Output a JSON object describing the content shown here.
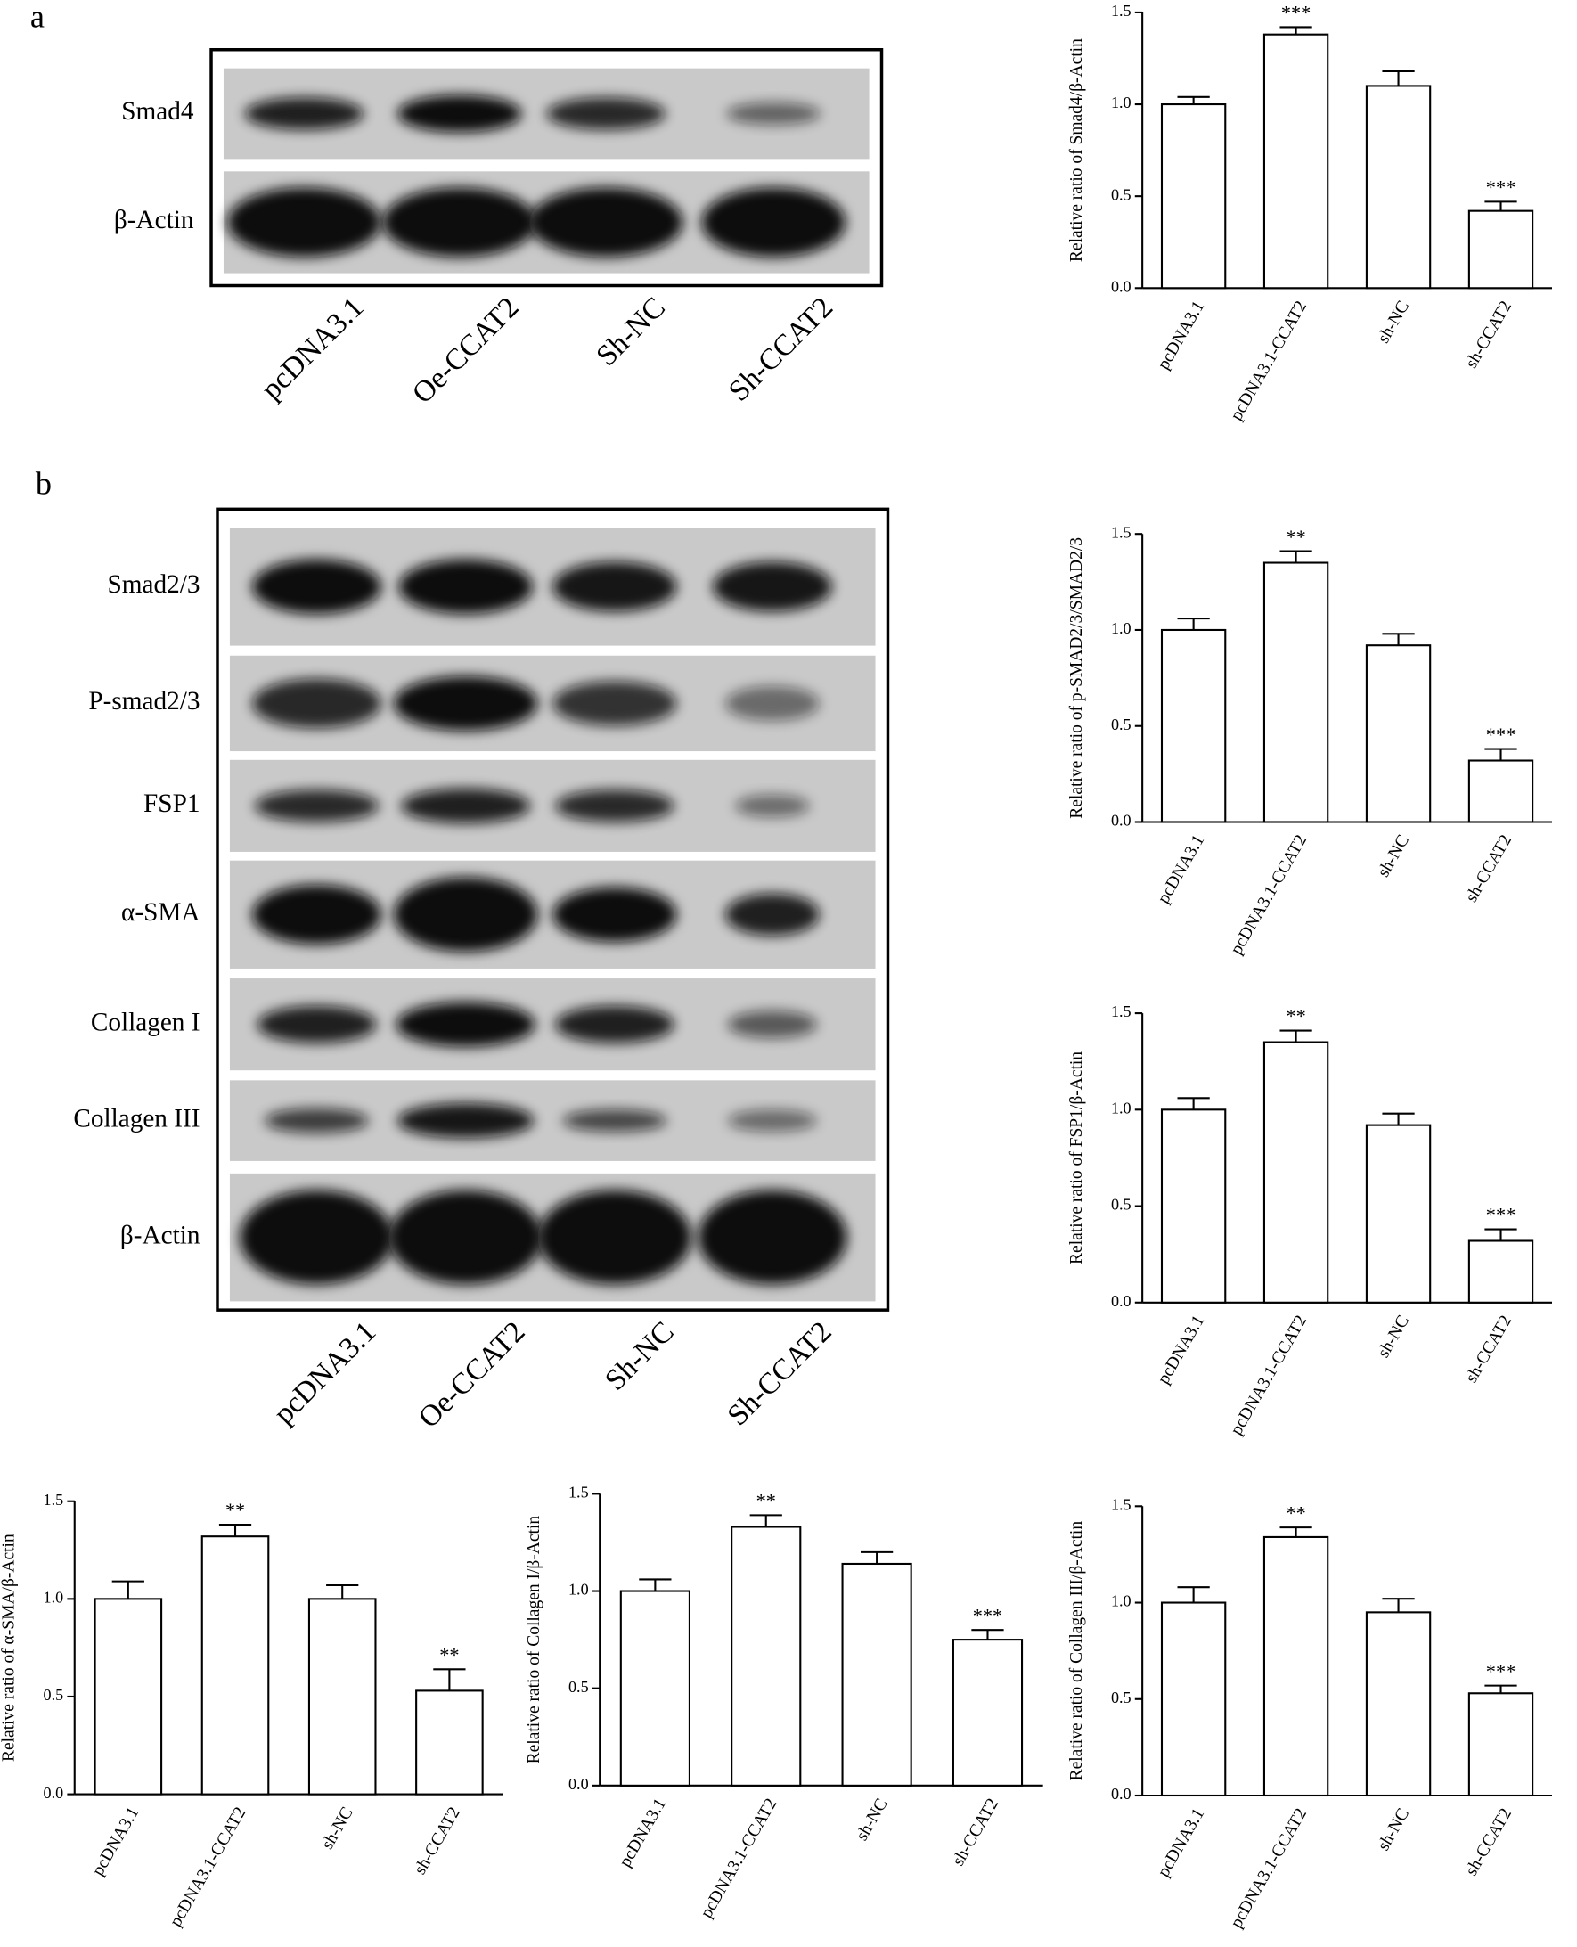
{
  "panels": [
    {
      "letter": "a",
      "rows": [
        "Smad4",
        "β-Actin"
      ],
      "lanes": [
        "pcDNA3.1",
        "Oe-CCAT2",
        "Sh-NC",
        "Sh-CCAT2"
      ]
    },
    {
      "letter": "b",
      "rows": [
        "Smad2/3",
        "P-smad2/3",
        "FSP1",
        "α-SMA",
        "Collagen I",
        "Collagen III",
        "β-Actin"
      ],
      "lanes": [
        "pcDNA3.1",
        "Oe-CCAT2",
        "Sh-NC",
        "Sh-CCAT2"
      ]
    }
  ],
  "chart_data": [
    {
      "type": "bar",
      "y_label": "Relative ratio of Smad4/β-Actin",
      "categories": [
        "pcDNA3.1",
        "pcDNA3.1-CCAT2",
        "sh-NC",
        "sh-CCAT2"
      ],
      "values": [
        1.0,
        1.38,
        1.1,
        0.42
      ],
      "errors": [
        0.04,
        0.04,
        0.08,
        0.05
      ],
      "significance": [
        null,
        "***",
        null,
        "***"
      ],
      "color": "#ffffff",
      "ylim": [
        0,
        1.5
      ],
      "yticks": [
        {
          "value": 0,
          "label": "0.0"
        },
        0.5,
        {
          "value": 1,
          "label": "1.0"
        },
        1.5
      ]
    },
    {
      "type": "bar",
      "y_label": "Relative ratio of p-SMAD2/3/SMAD2/3",
      "categories": [
        "pcDNA3.1",
        "pcDNA3.1-CCAT2",
        "sh-NC",
        "sh-CCAT2"
      ],
      "values": [
        1.0,
        1.35,
        0.92,
        0.32
      ],
      "errors": [
        0.06,
        0.06,
        0.06,
        0.06
      ],
      "significance": [
        null,
        "**",
        null,
        "***"
      ],
      "color": "#ffffff",
      "ylim": [
        0,
        1.5
      ],
      "yticks": [
        {
          "value": 0,
          "label": "0.0"
        },
        0.5,
        {
          "value": 1,
          "label": "1.0"
        },
        1.5
      ]
    },
    {
      "type": "bar",
      "y_label": "Relative ratio of FSP1/β-Actin",
      "categories": [
        "pcDNA3.1",
        "pcDNA3.1-CCAT2",
        "sh-NC",
        "sh-CCAT2"
      ],
      "values": [
        1.0,
        1.35,
        0.92,
        0.32
      ],
      "errors": [
        0.06,
        0.06,
        0.06,
        0.06
      ],
      "significance": [
        null,
        "**",
        null,
        "***"
      ],
      "color": "#ffffff",
      "ylim": [
        0,
        1.5
      ],
      "yticks": [
        {
          "value": 0,
          "label": "0.0"
        },
        0.5,
        {
          "value": 1,
          "label": "1.0"
        },
        1.5
      ]
    },
    {
      "type": "bar",
      "y_label": "Relative ratio of α-SMA/β-Actin",
      "categories": [
        "pcDNA3.1",
        "pcDNA3.1-CCAT2",
        "sh-NC",
        "sh-CCAT2"
      ],
      "values": [
        1.0,
        1.32,
        1.0,
        0.53
      ],
      "errors": [
        0.09,
        0.06,
        0.07,
        0.11
      ],
      "significance": [
        null,
        "**",
        null,
        "**"
      ],
      "color": "#ffffff",
      "ylim": [
        0,
        1.5
      ],
      "yticks": [
        {
          "value": 0,
          "label": "0.0"
        },
        0.5,
        {
          "value": 1,
          "label": "1.0"
        },
        1.5
      ]
    },
    {
      "type": "bar",
      "y_label": "Relative ratio of Collagen I/β-Actin",
      "categories": [
        "pcDNA3.1",
        "pcDNA3.1-CCAT2",
        "sh-NC",
        "sh-CCAT2"
      ],
      "values": [
        1.0,
        1.33,
        1.14,
        0.75
      ],
      "errors": [
        0.06,
        0.06,
        0.06,
        0.05
      ],
      "significance": [
        null,
        "**",
        null,
        "***"
      ],
      "color": "#ffffff",
      "ylim": [
        0,
        1.5
      ],
      "yticks": [
        {
          "value": 0,
          "label": "0.0"
        },
        0.5,
        {
          "value": 1,
          "label": "1.0"
        },
        1.5
      ]
    },
    {
      "type": "bar",
      "y_label": "Relative ratio of Collagen III/β-Actin",
      "categories": [
        "pcDNA3.1",
        "pcDNA3.1-CCAT2",
        "sh-NC",
        "sh-CCAT2"
      ],
      "values": [
        1.0,
        1.34,
        0.95,
        0.53
      ],
      "errors": [
        0.08,
        0.05,
        0.07,
        0.04
      ],
      "significance": [
        null,
        "**",
        null,
        "***"
      ],
      "color": "#ffffff",
      "ylim": [
        0,
        1.5
      ],
      "yticks": [
        {
          "value": 0,
          "label": "0.0"
        },
        0.5,
        {
          "value": 1,
          "label": "1.0"
        },
        1.5
      ]
    }
  ]
}
